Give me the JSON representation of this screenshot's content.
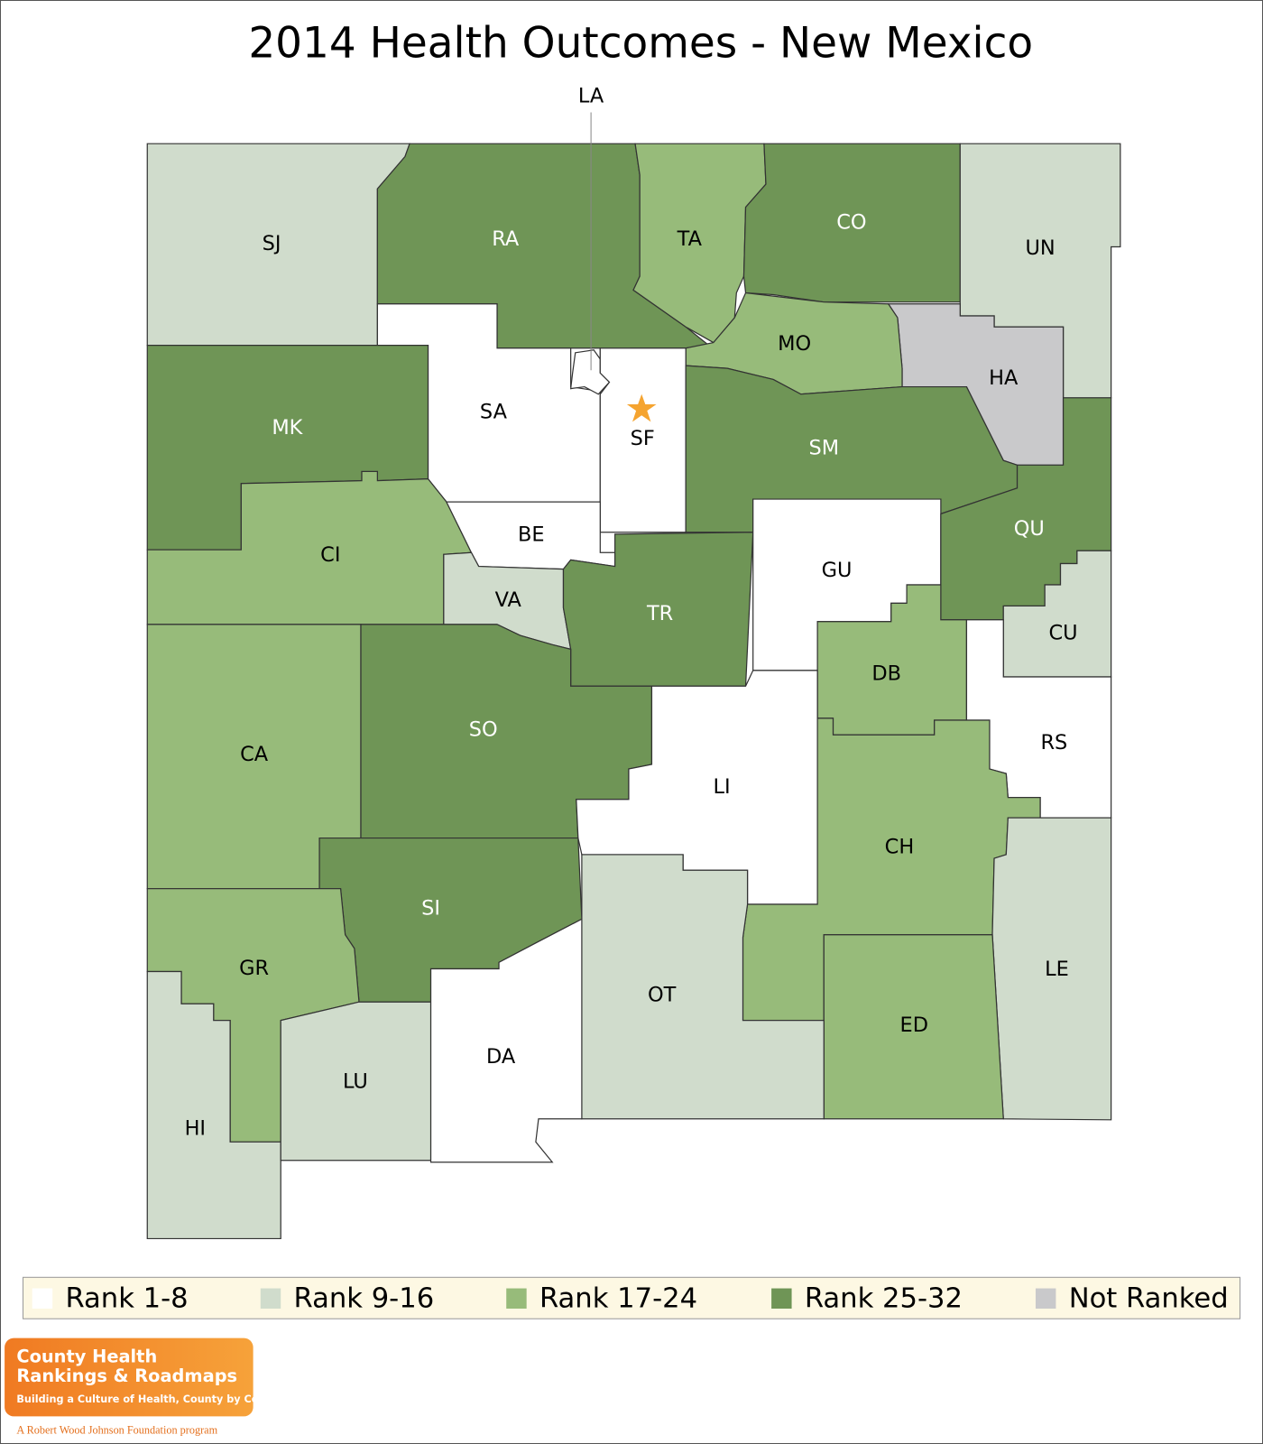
{
  "title": "2014 Health Outcomes - New Mexico",
  "counties": [
    {
      "label": "SJ",
      "color": "#d0dccc"
    },
    {
      "label": "RA",
      "color": "#6f9556"
    },
    {
      "label": "TA",
      "color": "#97bb7a"
    },
    {
      "label": "CO",
      "color": "#6f9556"
    },
    {
      "label": "UN",
      "color": "#d0dccc"
    },
    {
      "label": "HA",
      "color": "#c9c9cb"
    },
    {
      "label": "MO",
      "color": "#97bb7a"
    },
    {
      "label": "SA",
      "color": "#ffffff"
    },
    {
      "label": "LA",
      "color": "#ffffff"
    },
    {
      "label": "SF",
      "color": "#ffffff"
    },
    {
      "label": "SM",
      "color": "#6f9556"
    },
    {
      "label": "MK",
      "color": "#6f9556"
    },
    {
      "label": "CI",
      "color": "#97bb7a"
    },
    {
      "label": "BE",
      "color": "#ffffff"
    },
    {
      "label": "VA",
      "color": "#d0dccc"
    },
    {
      "label": "TR",
      "color": "#6f9556"
    },
    {
      "label": "GU",
      "color": "#ffffff"
    },
    {
      "label": "QU",
      "color": "#6f9556"
    },
    {
      "label": "CU",
      "color": "#d0dccc"
    },
    {
      "label": "DB",
      "color": "#97bb7a"
    },
    {
      "label": "RS",
      "color": "#ffffff"
    },
    {
      "label": "CA",
      "color": "#97bb7a"
    },
    {
      "label": "SO",
      "color": "#6f9556"
    },
    {
      "label": "LI",
      "color": "#ffffff"
    },
    {
      "label": "CH",
      "color": "#97bb7a"
    },
    {
      "label": "LE",
      "color": "#d0dccc"
    },
    {
      "label": "ED",
      "color": "#97bb7a"
    },
    {
      "label": "OT",
      "color": "#d0dccc"
    },
    {
      "label": "SI",
      "color": "#6f9556"
    },
    {
      "label": "GR",
      "color": "#97bb7a"
    },
    {
      "label": "HI",
      "color": "#d0dccc"
    },
    {
      "label": "LU",
      "color": "#d0dccc"
    },
    {
      "label": "DA",
      "color": "#ffffff"
    }
  ],
  "legend": [
    {
      "label": "Rank 1-8",
      "color": "#ffffff"
    },
    {
      "label": "Rank 9-16",
      "color": "#d0dccc"
    },
    {
      "label": "Rank 17-24",
      "color": "#97bb7a"
    },
    {
      "label": "Rank 25-32",
      "color": "#6f9556"
    },
    {
      "label": "Not Ranked",
      "color": "#c9c9cb"
    }
  ],
  "logo": {
    "line1": "County Health",
    "line2": "Rankings & Roadmaps",
    "tagline": "Building a Culture of Health, County by County",
    "footer": "A Robert Wood Johnson Foundation program"
  }
}
